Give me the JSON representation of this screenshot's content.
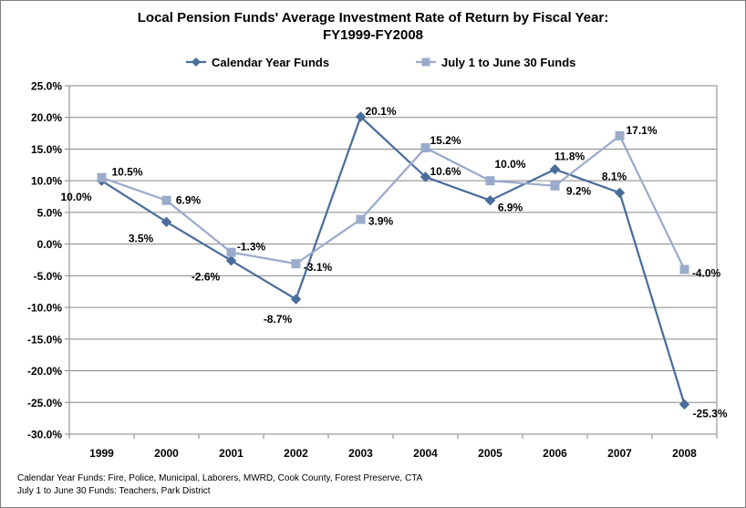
{
  "chart_data": {
    "type": "line",
    "title_line1": "Local Pension Funds' Average Investment Rate of Return by Fiscal Year:",
    "title_line2": "FY1999-FY2008",
    "xlabel": "",
    "ylabel": "",
    "categories": [
      "1999",
      "2000",
      "2001",
      "2002",
      "2003",
      "2004",
      "2005",
      "2006",
      "2007",
      "2008"
    ],
    "ylim": [
      -30,
      25
    ],
    "yticks": [
      -30,
      -25,
      -20,
      -15,
      -10,
      -5,
      0,
      5,
      10,
      15,
      20,
      25
    ],
    "ytick_labels": [
      "-30.0%",
      "-25.0%",
      "-20.0%",
      "-15.0%",
      "-10.0%",
      "-5.0%",
      "0.0%",
      "5.0%",
      "10.0%",
      "15.0%",
      "20.0%",
      "25.0%"
    ],
    "grid": true,
    "legend_position": "top",
    "series": [
      {
        "name": "Calendar Year Funds",
        "color": "#4a6d9a",
        "marker": "diamond",
        "values": [
          10.0,
          3.5,
          -2.6,
          -8.7,
          20.1,
          10.6,
          6.9,
          11.8,
          8.1,
          -25.3
        ],
        "labels": [
          "10.0%",
          "3.5%",
          "-2.6%",
          "-8.7%",
          "20.1%",
          "10.6%",
          "6.9%",
          "11.8%",
          "8.1%",
          "-25.3%"
        ]
      },
      {
        "name": "July 1 to June 30 Funds",
        "color": "#9aabcb",
        "marker": "square",
        "values": [
          10.5,
          6.9,
          -1.3,
          -3.1,
          3.9,
          15.2,
          10.0,
          9.2,
          17.1,
          -4.0
        ],
        "labels": [
          "10.5%",
          "6.9%",
          "-1.3%",
          "-3.1%",
          "3.9%",
          "15.2%",
          "10.0%",
          "9.2%",
          "17.1%",
          "-4.0%"
        ]
      }
    ]
  },
  "footnotes": {
    "line1": "Calendar Year Funds: Fire, Police, Municipal, Laborers, MWRD, Cook County, Forest Preserve, CTA",
    "line2": "July 1 to June 30 Funds: Teachers, Park District"
  }
}
